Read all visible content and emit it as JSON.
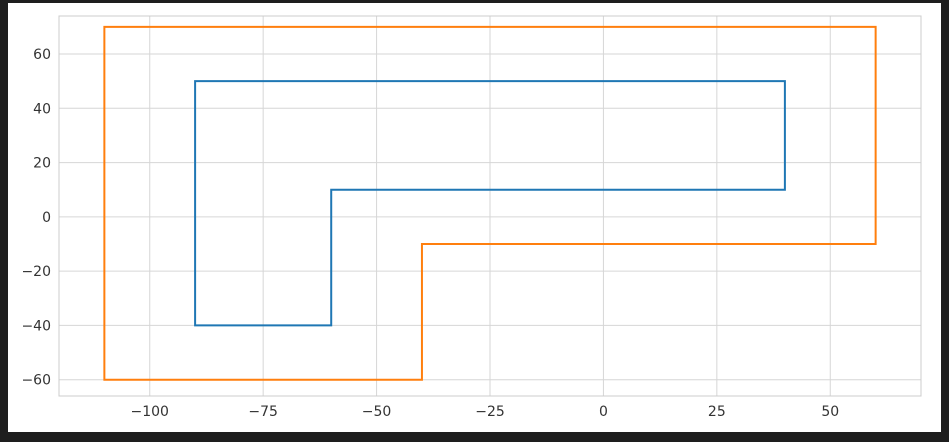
{
  "chart_data": {
    "type": "line",
    "title": "",
    "xlabel": "",
    "ylabel": "",
    "grid": true,
    "xlim": [
      -120,
      70
    ],
    "ylim": [
      -66,
      74
    ],
    "xticks": [
      -100,
      -75,
      -50,
      -25,
      0,
      25,
      50
    ],
    "xtick_labels": [
      "−100",
      "−75",
      "−50",
      "−25",
      "0",
      "25",
      "50"
    ],
    "yticks": [
      -60,
      -40,
      -20,
      0,
      20,
      40,
      60
    ],
    "ytick_labels": [
      "−60",
      "−40",
      "−20",
      "0",
      "20",
      "40",
      "60"
    ],
    "series": [
      {
        "color": "#1f77b4",
        "x": [
          -90,
          40,
          40,
          -60,
          -60,
          -90,
          -90
        ],
        "y": [
          50,
          50,
          10,
          10,
          -40,
          -40,
          50
        ]
      },
      {
        "color": "#ff7f0e",
        "x": [
          -110,
          60,
          60,
          -40,
          -40,
          -110,
          -110
        ],
        "y": [
          70,
          70,
          -10,
          -10,
          -60,
          -60,
          70
        ]
      }
    ]
  }
}
